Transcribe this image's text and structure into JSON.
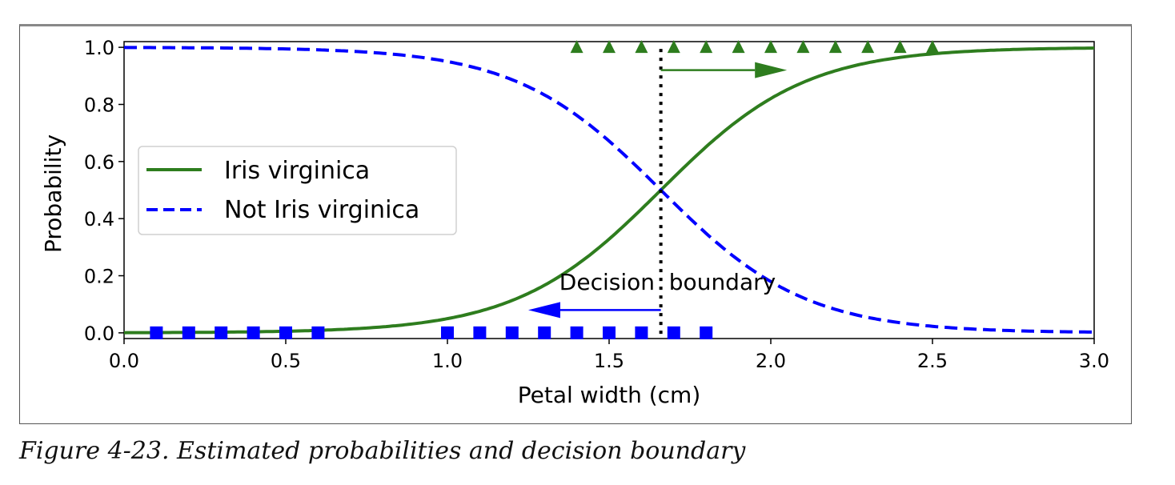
{
  "caption": "Figure 4-23. Estimated probabilities and decision boundary",
  "chart_data": {
    "type": "line",
    "xlabel": "Petal width (cm)",
    "ylabel": "Probability",
    "xlim": [
      0,
      3
    ],
    "ylim": [
      -0.02,
      1.02
    ],
    "xticks": [
      "0.0",
      "0.5",
      "1.0",
      "1.5",
      "2.0",
      "2.5",
      "3.0"
    ],
    "yticks": [
      "0.0",
      "0.2",
      "0.4",
      "0.6",
      "0.8",
      "1.0"
    ],
    "grid": false,
    "legend_placement": "center-left",
    "decision_boundary": 1.66,
    "annotation": "Decision  boundary",
    "series": [
      {
        "name": "Iris virginica",
        "style": "solid",
        "color": "#2e7d1e",
        "model": "logistic",
        "midpoint": 1.66,
        "steepness": 4.47
      },
      {
        "name": "Not Iris virginica",
        "style": "dashed",
        "color": "#0000ff",
        "model": "1 - logistic",
        "midpoint": 1.66,
        "steepness": 4.47
      }
    ],
    "scatter": [
      {
        "marker": "square",
        "color": "#0000ff",
        "y": 0,
        "x": [
          0.1,
          0.2,
          0.3,
          0.4,
          0.5,
          0.6,
          1.0,
          1.1,
          1.2,
          1.3,
          1.4,
          1.5,
          1.6,
          1.7,
          1.8
        ]
      },
      {
        "marker": "triangle",
        "color": "#2e7d1e",
        "y": 1,
        "x": [
          1.4,
          1.5,
          1.6,
          1.7,
          1.8,
          1.9,
          2.0,
          2.1,
          2.2,
          2.3,
          2.4,
          2.5
        ]
      }
    ],
    "arrows": [
      {
        "color": "#2e7d1e",
        "from": [
          1.66,
          0.92
        ],
        "to": [
          2.05,
          0.92
        ]
      },
      {
        "color": "#0000ff",
        "from": [
          1.66,
          0.08
        ],
        "to": [
          1.25,
          0.08
        ]
      }
    ]
  }
}
